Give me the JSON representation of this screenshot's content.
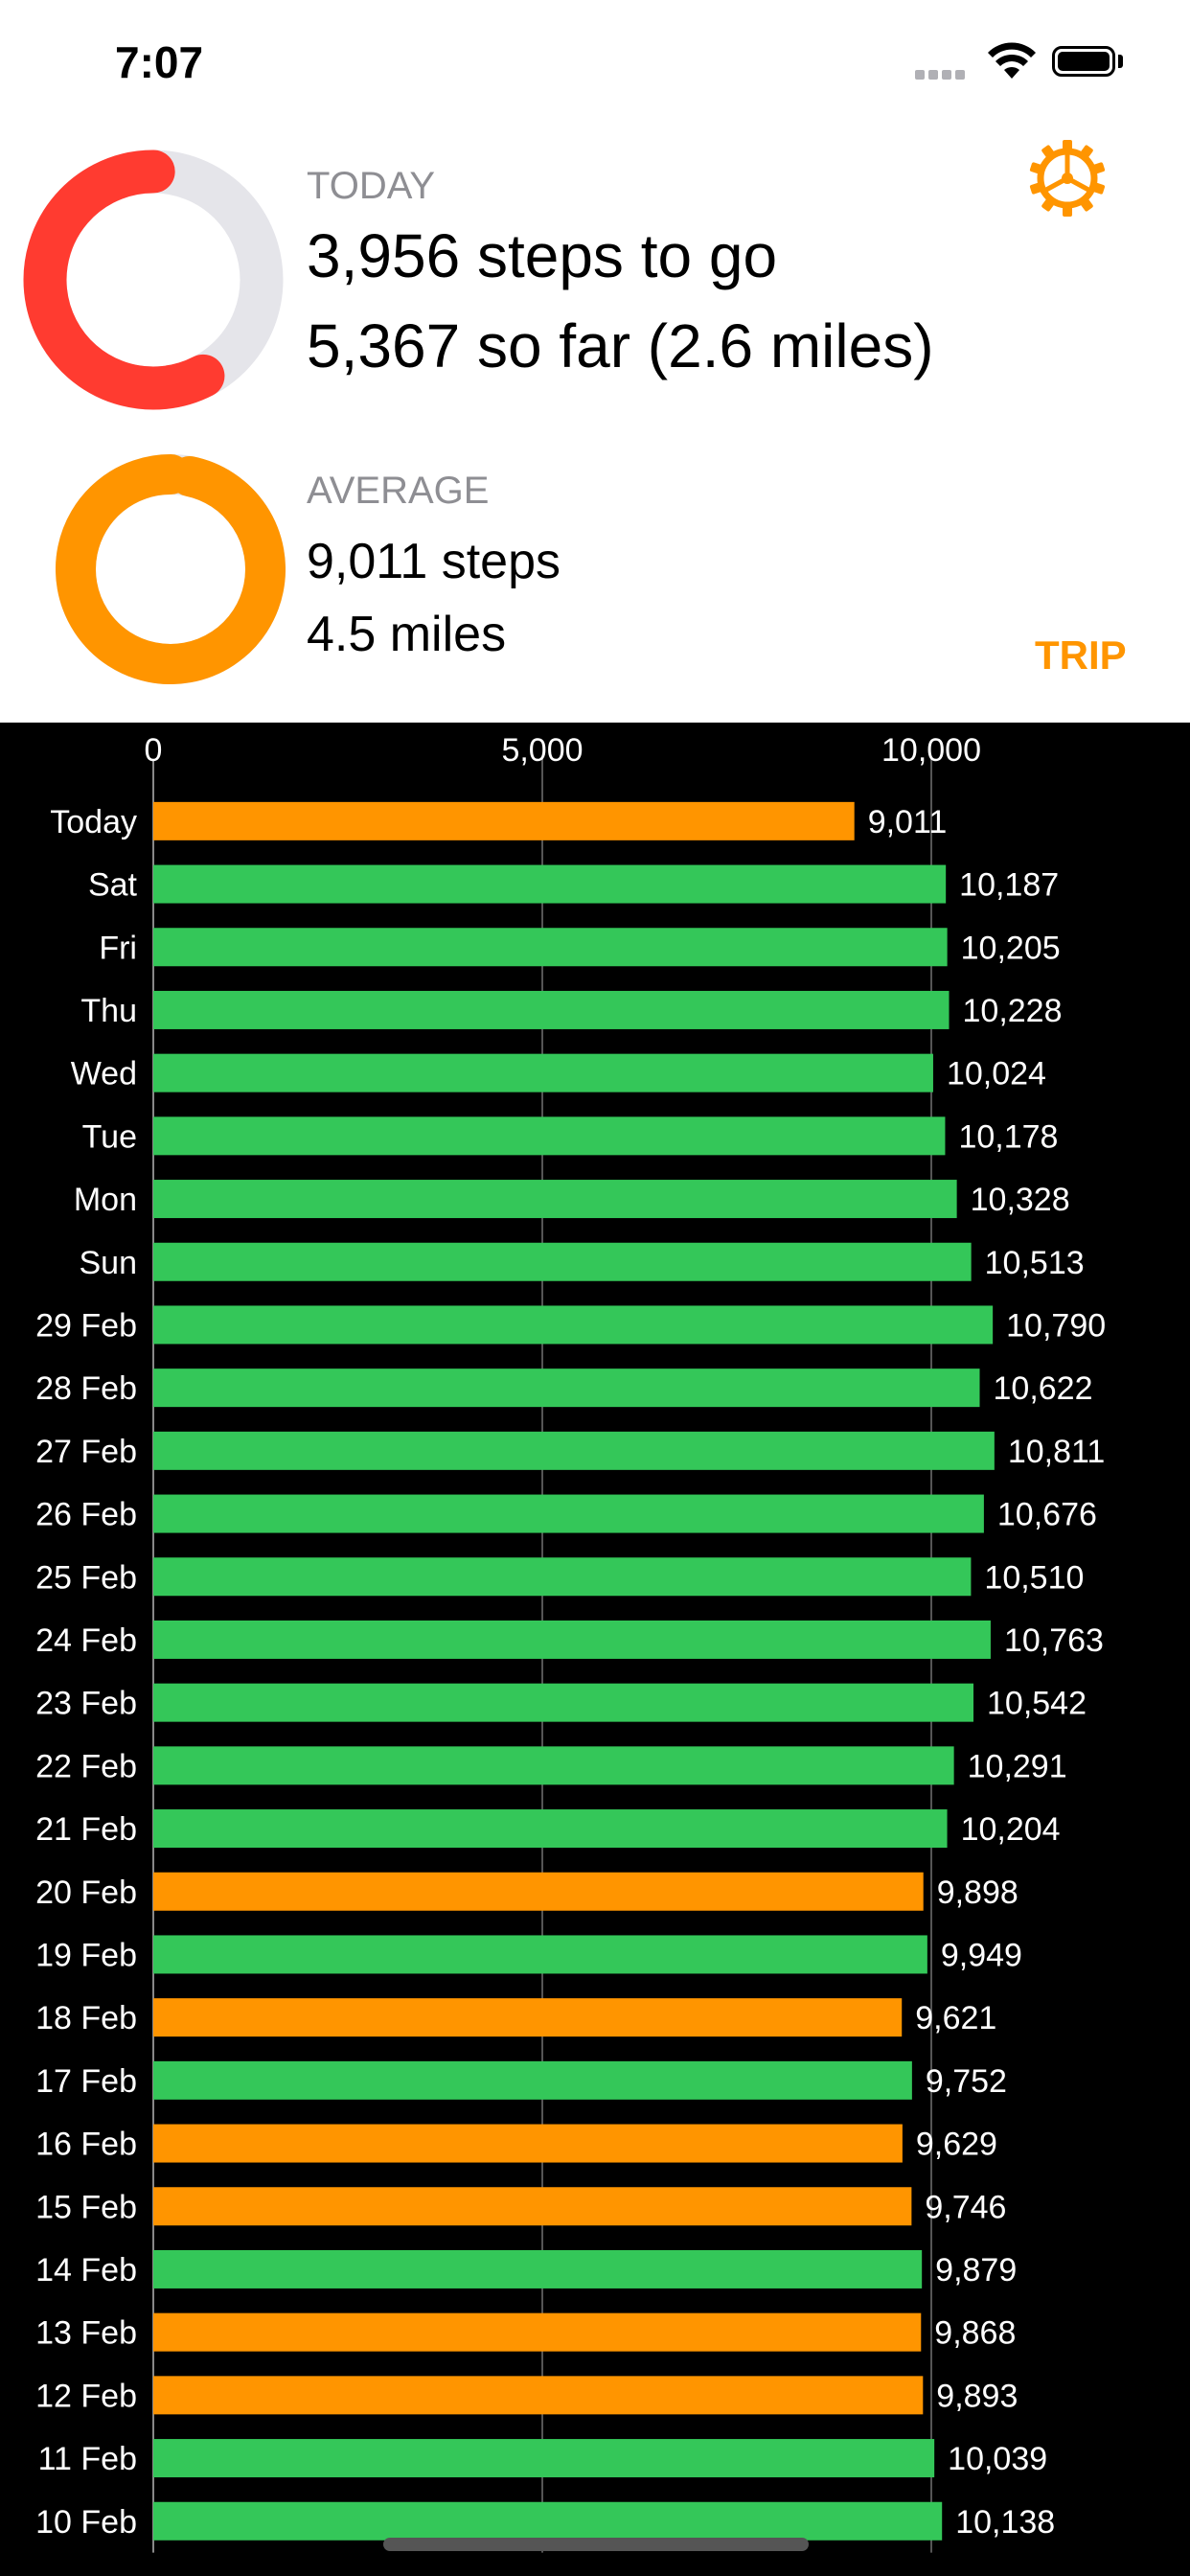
{
  "status_bar": {
    "time": "7:07"
  },
  "today": {
    "label": "TODAY",
    "steps_to_go": "3,956 steps to go",
    "so_far": "5,367 so far (2.6 miles)",
    "progress_fraction": 0.576,
    "ring_color": "#ff3b30"
  },
  "average": {
    "label": "AVERAGE",
    "steps": "9,011 steps",
    "miles": "4.5 miles",
    "progress_fraction": 0.968,
    "ring_color": "#ff9500"
  },
  "header": {
    "gear_icon": "gear-icon",
    "trip_label": "TRIP"
  },
  "colors": {
    "accent": "#ff9500",
    "green": "#34c759",
    "red": "#ff3b30",
    "track": "#e5e5ea"
  },
  "chart_data": {
    "type": "bar",
    "orientation": "horizontal",
    "xlim": [
      0,
      10000
    ],
    "tick_values": [
      0,
      5000,
      10000
    ],
    "tick_labels": [
      "0",
      "5,000",
      "10,000"
    ],
    "goal": 10000,
    "categories": [
      "Today",
      "Sat",
      "Fri",
      "Thu",
      "Wed",
      "Tue",
      "Mon",
      "Sun",
      "29 Feb",
      "28 Feb",
      "27 Feb",
      "26 Feb",
      "25 Feb",
      "24 Feb",
      "23 Feb",
      "22 Feb",
      "21 Feb",
      "20 Feb",
      "19 Feb",
      "18 Feb",
      "17 Feb",
      "16 Feb",
      "15 Feb",
      "14 Feb",
      "13 Feb",
      "12 Feb",
      "11 Feb",
      "10 Feb"
    ],
    "values": [
      9011,
      10187,
      10205,
      10228,
      10024,
      10178,
      10328,
      10513,
      10790,
      10622,
      10811,
      10676,
      10510,
      10763,
      10542,
      10291,
      10204,
      9898,
      9949,
      9621,
      9752,
      9629,
      9746,
      9879,
      9868,
      9893,
      10039,
      10138
    ],
    "value_labels": [
      "9,011",
      "10,187",
      "10,205",
      "10,228",
      "10,024",
      "10,178",
      "10,328",
      "10,513",
      "10,790",
      "10,622",
      "10,811",
      "10,676",
      "10,510",
      "10,763",
      "10,542",
      "10,291",
      "10,204",
      "9,898",
      "9,949",
      "9,621",
      "9,752",
      "9,629",
      "9,746",
      "9,879",
      "9,868",
      "9,893",
      "10,039",
      "10,138"
    ],
    "bar_colors": [
      "orange",
      "green",
      "green",
      "green",
      "green",
      "green",
      "green",
      "green",
      "green",
      "green",
      "green",
      "green",
      "green",
      "green",
      "green",
      "green",
      "green",
      "orange",
      "green",
      "orange",
      "green",
      "orange",
      "orange",
      "green",
      "orange",
      "orange",
      "green",
      "green"
    ],
    "title": "",
    "xlabel": "",
    "ylabel": ""
  }
}
